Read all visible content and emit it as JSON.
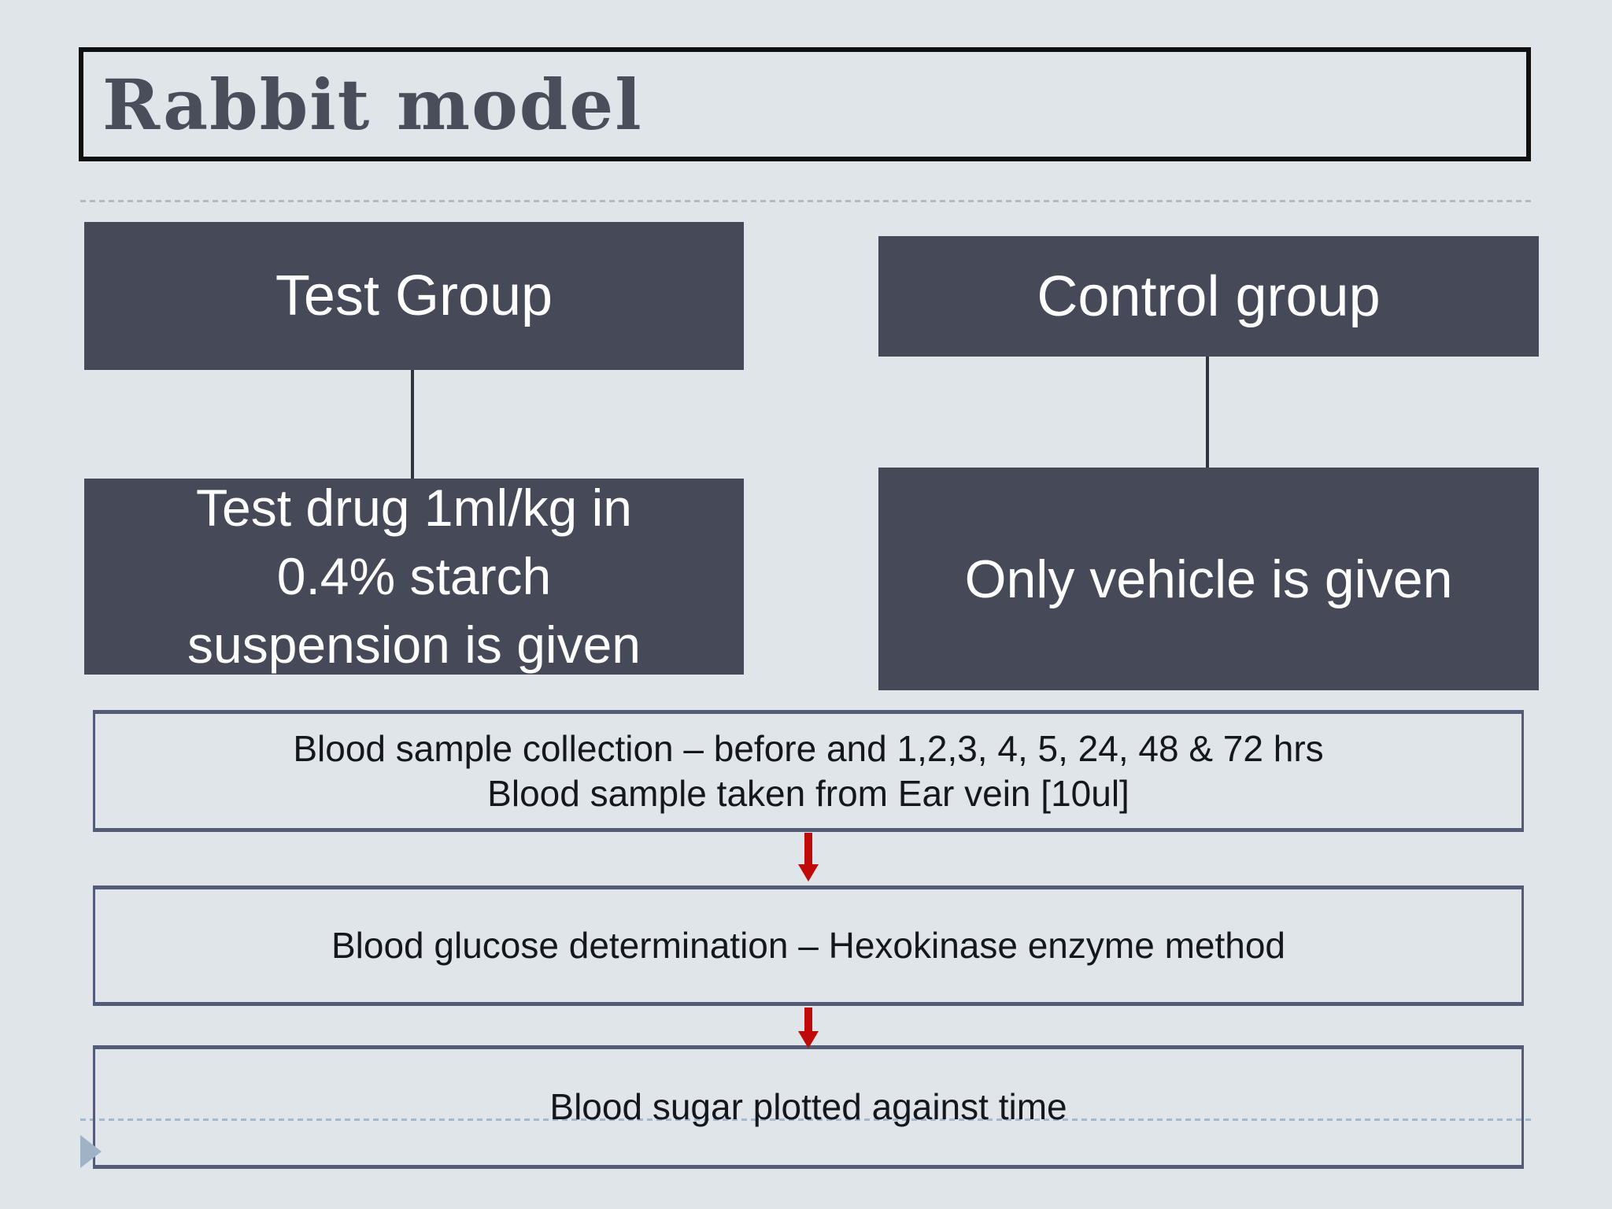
{
  "slide": {
    "title": "Rabbit model"
  },
  "flowchart": {
    "test_column": {
      "group_label": "Test Group",
      "treatment_lines": [
        "Test drug 1ml/kg in",
        "0.4% starch",
        "suspension is given"
      ]
    },
    "control_column": {
      "group_label": "Control group",
      "treatment": "Only vehicle is given"
    },
    "steps": [
      {
        "lines": [
          "Blood sample collection – before and 1,2,3, 4, 5, 24, 48 & 72 hrs",
          "Blood sample taken from Ear vein [10ul]"
        ]
      },
      {
        "lines": [
          "Blood glucose determination – Hexokinase enzyme method"
        ]
      },
      {
        "lines": [
          "Blood sugar plotted against time"
        ]
      }
    ]
  },
  "icons": {
    "down_arrow": "red-down-arrow",
    "play_triangle": "right-pointing-triangle"
  },
  "colors": {
    "background": "#dfe5e9",
    "dark_box": "#454958",
    "dark_box_text": "#ffffff",
    "step_border": "#545b79",
    "body_text": "#14171e",
    "title_text": "#4a4e5b",
    "title_border": "#101010",
    "arrow_red": "#c00a0a",
    "dashed_top": "#b3bbc1",
    "dashed_bottom": "#a7b8ca",
    "triangle": "#9fb3c6"
  }
}
